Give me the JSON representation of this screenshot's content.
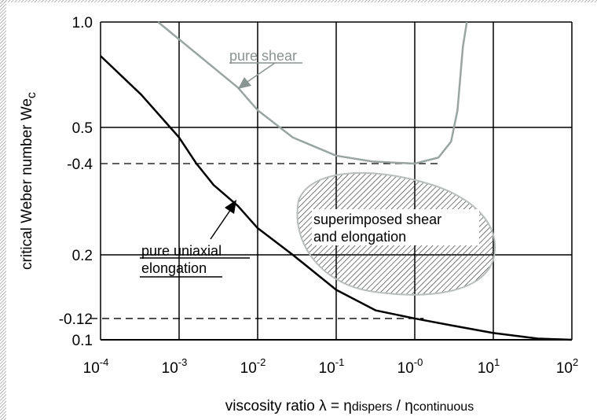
{
  "chart_data": {
    "type": "line",
    "xscale": "log",
    "yscale": "log",
    "xlabel": {
      "main": "viscosity ratio λ  =  η",
      "sub1": "dispers",
      "slash": " / η",
      "sub2": "continuous"
    },
    "ylabel": {
      "main": "critical Weber number We",
      "sub": "c"
    },
    "xlim": [
      0.0001,
      100
    ],
    "ylim": [
      0.1,
      1.0
    ],
    "grid": true,
    "x_ticks": [
      {
        "value": 0.0001,
        "base": "10",
        "exp": "-4"
      },
      {
        "value": 0.001,
        "base": "10",
        "exp": "-3"
      },
      {
        "value": 0.01,
        "base": "10",
        "exp": "-2"
      },
      {
        "value": 0.1,
        "base": "10",
        "exp": "-1"
      },
      {
        "value": 1,
        "base": "10",
        "exp": "-0"
      },
      {
        "value": 10,
        "base": "10",
        "exp": "1"
      },
      {
        "value": 100,
        "base": "10",
        "exp": "2"
      }
    ],
    "y_ticks": [
      {
        "value": 1.0,
        "label": "1.0"
      },
      {
        "value": 0.5,
        "label": "0.5"
      },
      {
        "value": 0.4,
        "label": "-0.4"
      },
      {
        "value": 0.2,
        "label": "0.2"
      },
      {
        "value": 0.12,
        "label": "-0.12"
      },
      {
        "value": 0.1,
        "label": "0.1"
      }
    ],
    "y_gridlines": [
      0.5,
      0.2
    ],
    "series": [
      {
        "name": "pure uniaxial elongation",
        "color": "#000000",
        "x": [
          0.0001,
          0.00033,
          0.001,
          0.00166,
          0.00275,
          0.0056,
          0.01,
          0.028,
          0.1,
          0.32,
          1,
          3,
          10,
          37,
          100
        ],
        "y": [
          0.8,
          0.62,
          0.47,
          0.4,
          0.34,
          0.29,
          0.245,
          0.2,
          0.151,
          0.128,
          0.12,
          0.113,
          0.106,
          0.101,
          0.1
        ]
      },
      {
        "name": "pure shear",
        "color": "#9aa4a2",
        "x": [
          0.00054,
          0.0056,
          0.01,
          0.028,
          0.1,
          0.29,
          1,
          2,
          2.9,
          3.5,
          4.1,
          4.6
        ],
        "y": [
          1.0,
          0.65,
          0.56,
          0.47,
          0.42,
          0.405,
          0.4,
          0.415,
          0.458,
          0.56,
          0.85,
          1.0
        ]
      }
    ],
    "reference_lines": [
      {
        "y": 0.4,
        "x_end": 2
      },
      {
        "y": 0.12,
        "x_end": 1.3
      }
    ],
    "annotations": {
      "shear": {
        "text": "pure shear",
        "color": "#8a9492"
      },
      "elongation": {
        "line1": "pure uniaxial",
        "line2": "elongation"
      },
      "region": {
        "line1": "superimposed shear",
        "line2": "and elongation",
        "color": "#555555"
      }
    }
  }
}
